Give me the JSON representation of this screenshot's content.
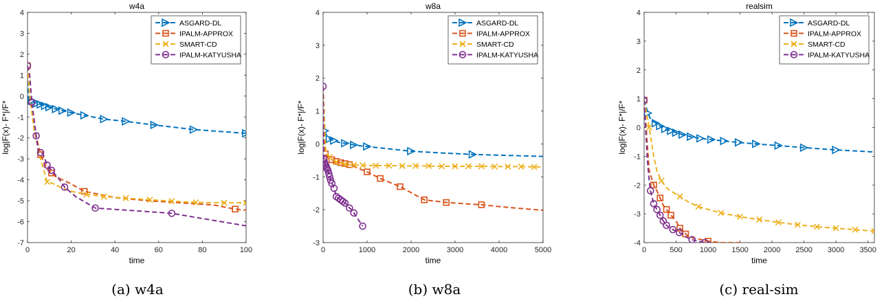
{
  "legend_entries": [
    {
      "name": "ASGARD-DL",
      "color": "#0072BD",
      "marker": "triangle-right"
    },
    {
      "name": "IPALM-APPROX",
      "color": "#D95319",
      "marker": "square"
    },
    {
      "name": "SMART-CD",
      "color": "#EDB120",
      "marker": "x"
    },
    {
      "name": "IPALM-KATYUSHA",
      "color": "#7E2F8E",
      "marker": "circle"
    }
  ],
  "chart_data": [
    {
      "type": "line",
      "title": "w4a",
      "caption": "(a) w4a",
      "xlabel": "time",
      "ylabel": "log|F(x)- F*|/F*",
      "xlim": [
        0,
        100
      ],
      "ylim": [
        -7,
        4
      ],
      "xticks": [
        0,
        20,
        40,
        60,
        80,
        100
      ],
      "yticks": [
        -7,
        -6,
        -5,
        -4,
        -3,
        -2,
        -1,
        0,
        1,
        2,
        3,
        4
      ],
      "grid": false,
      "legend_position": "top-right",
      "series": [
        {
          "name": "ASGARD-DL",
          "x": [
            0,
            0.3,
            1,
            2,
            3,
            4.5,
            6,
            8,
            10,
            13,
            16,
            20,
            26,
            33,
            35,
            45,
            58,
            76,
            100
          ],
          "y": [
            1.45,
            -0.1,
            -0.15,
            -0.22,
            -0.28,
            -0.34,
            -0.4,
            -0.47,
            -0.53,
            -0.62,
            -0.7,
            -0.79,
            -0.92,
            -1.06,
            -1.1,
            -1.21,
            -1.38,
            -1.6,
            -1.78
          ],
          "markers_x": [
            0.3,
            2,
            4.5,
            6,
            8,
            10,
            13,
            16,
            20,
            26,
            35,
            45,
            58,
            76,
            100
          ]
        },
        {
          "name": "IPALM-APPROX",
          "x": [
            0,
            1,
            3,
            6,
            9,
            13,
            20,
            26,
            40,
            55,
            70,
            85,
            95,
            100
          ],
          "y": [
            1.45,
            0,
            -1.5,
            -2.8,
            -3.5,
            -3.85,
            -4.2,
            -4.55,
            -4.85,
            -5,
            -5.1,
            -5.2,
            -5.4,
            -5.45
          ],
          "markers_x": [
            0,
            6,
            11,
            26,
            95
          ]
        },
        {
          "name": "SMART-CD",
          "x": [
            0,
            1,
            3,
            6,
            9,
            11,
            15,
            20,
            27,
            35,
            45,
            56,
            66,
            77,
            90,
            100
          ],
          "y": [
            1.45,
            0,
            -1.6,
            -3,
            -4.1,
            -4.15,
            -4.35,
            -4.55,
            -4.7,
            -4.8,
            -4.88,
            -4.95,
            -5.02,
            -5.08,
            -5.1,
            -5.1
          ],
          "markers_x": [
            9,
            27,
            35,
            45,
            56,
            66,
            77,
            90,
            100
          ]
        },
        {
          "name": "IPALM-KATYUSHA",
          "x": [
            0,
            1,
            2,
            3,
            4,
            5,
            6,
            7,
            9,
            11,
            14,
            17,
            22,
            31,
            45,
            66,
            80,
            100
          ],
          "y": [
            1.45,
            1,
            -0.3,
            -1.1,
            -1.9,
            -2.7,
            -2.7,
            -2.75,
            -3.3,
            -3.55,
            -3.9,
            -4.35,
            -4.8,
            -5.35,
            -5.45,
            -5.6,
            -5.85,
            -6.2
          ],
          "markers_x": [
            0,
            2,
            4,
            6,
            9,
            11,
            17,
            31,
            66
          ]
        }
      ]
    },
    {
      "type": "line",
      "title": "w8a",
      "caption": "(b) w8a",
      "xlabel": "time",
      "ylabel": "log|F(x)- F*|/F*",
      "xlim": [
        0,
        5000
      ],
      "ylim": [
        -3,
        4
      ],
      "xticks": [
        0,
        1000,
        2000,
        3000,
        4000,
        5000
      ],
      "yticks": [
        -3,
        -2,
        -1,
        0,
        1,
        2,
        3,
        4
      ],
      "grid": false,
      "legend_position": "top-right",
      "series": [
        {
          "name": "ASGARD-DL",
          "x": [
            0,
            40,
            80,
            150,
            250,
            350,
            500,
            700,
            1000,
            1500,
            2000,
            2600,
            3400,
            4200,
            5000
          ],
          "y": [
            1.75,
            0.4,
            0.25,
            0.15,
            0.1,
            0.05,
            0.02,
            -0.03,
            -0.08,
            -0.15,
            -0.22,
            -0.27,
            -0.32,
            -0.35,
            -0.38
          ],
          "markers_x": [
            40,
            150,
            250,
            500,
            700,
            1000,
            2000,
            3400
          ]
        },
        {
          "name": "IPALM-APPROX",
          "x": [
            0,
            50,
            100,
            200,
            300,
            400,
            500,
            600,
            1000,
            1300,
            1750,
            2300,
            2800,
            3600,
            4200,
            5000
          ],
          "y": [
            1.75,
            -0.3,
            -0.4,
            -0.48,
            -0.53,
            -0.57,
            -0.6,
            -0.63,
            -0.85,
            -1.05,
            -1.3,
            -1.7,
            -1.78,
            -1.85,
            -1.93,
            -2.02
          ],
          "markers_x": [
            50,
            200,
            300,
            400,
            500,
            600,
            1000,
            1300,
            1750,
            2300,
            2800,
            3600
          ]
        },
        {
          "name": "SMART-CD",
          "x": [
            0,
            60,
            150,
            300,
            500,
            700,
            900,
            1200,
            1500,
            1800,
            2100,
            2400,
            2700,
            3000,
            3300,
            3600,
            3900,
            4200,
            4500,
            4800,
            5000
          ],
          "y": [
            1.75,
            -0.2,
            -0.4,
            -0.55,
            -0.62,
            -0.64,
            -0.65,
            -0.66,
            -0.66,
            -0.67,
            -0.67,
            -0.67,
            -0.68,
            -0.68,
            -0.68,
            -0.68,
            -0.69,
            -0.69,
            -0.69,
            -0.7,
            -0.7
          ],
          "markers_x": [
            150,
            300,
            500,
            700,
            900,
            1200,
            1500,
            1800,
            2100,
            2400,
            2700,
            3000,
            3300,
            3600,
            3900,
            4200,
            4500,
            4800
          ]
        },
        {
          "name": "IPALM-KATYUSHA",
          "x": [
            0,
            15,
            30,
            45,
            60,
            75,
            90,
            110,
            130,
            150,
            170,
            200,
            250,
            300,
            350,
            400,
            450,
            500,
            550,
            600,
            650,
            700,
            900
          ],
          "y": [
            1.75,
            -0.45,
            -0.55,
            -0.6,
            -0.65,
            -0.7,
            -0.75,
            -0.8,
            -0.9,
            -1,
            -1.1,
            -1.2,
            -1.35,
            -1.6,
            -1.65,
            -1.7,
            -1.75,
            -1.8,
            -1.85,
            -1.95,
            -2,
            -2.1,
            -2.5
          ],
          "markers_x": [
            0,
            15,
            30,
            45,
            60,
            75,
            90,
            110,
            130,
            150,
            170,
            200,
            250,
            300,
            350,
            400,
            450,
            500,
            600,
            700,
            900
          ]
        }
      ]
    },
    {
      "type": "line",
      "title": "realsim",
      "caption": "(c) real-sim",
      "xlabel": "time",
      "ylabel": "log|F(x)- F*|/F*",
      "xlim": [
        0,
        3600
      ],
      "ylim": [
        -4,
        4
      ],
      "xticks": [
        0,
        500,
        1000,
        1500,
        2000,
        2500,
        3000,
        3500
      ],
      "yticks": [
        -4,
        -3,
        -2,
        -1,
        0,
        1,
        2,
        3,
        4
      ],
      "grid": false,
      "legend_position": "top-right",
      "series": [
        {
          "name": "ASGARD-DL",
          "x": [
            0,
            60,
            100,
            180,
            250,
            330,
            420,
            500,
            600,
            730,
            880,
            1050,
            1250,
            1480,
            1750,
            2100,
            2500,
            3000,
            3600
          ],
          "y": [
            0.95,
            0.5,
            0.3,
            0.15,
            0.05,
            -0.05,
            -0.12,
            -0.18,
            -0.25,
            -0.32,
            -0.38,
            -0.42,
            -0.47,
            -0.52,
            -0.57,
            -0.63,
            -0.7,
            -0.78,
            -0.85
          ],
          "markers_x": [
            60,
            180,
            250,
            330,
            420,
            500,
            600,
            730,
            880,
            1050,
            1250,
            1480,
            1750,
            2100,
            2500,
            3000
          ]
        },
        {
          "name": "IPALM-APPROX",
          "x": [
            0,
            80,
            150,
            200,
            250,
            300,
            350,
            420,
            500,
            560,
            650,
            700,
            800,
            900,
            1000,
            1200,
            1500
          ],
          "y": [
            0.95,
            -1.5,
            -2,
            -2.2,
            -2.45,
            -2.7,
            -2.85,
            -3.05,
            -3.25,
            -3.5,
            -3.7,
            -3.8,
            -3.85,
            -3.9,
            -3.95,
            -4,
            -4
          ],
          "markers_x": [
            0,
            150,
            250,
            350,
            420,
            560,
            650,
            1000
          ]
        },
        {
          "name": "SMART-CD",
          "x": [
            0,
            80,
            150,
            200,
            270,
            350,
            450,
            560,
            700,
            850,
            1000,
            1200,
            1500,
            1800,
            2100,
            2400,
            2700,
            3000,
            3300,
            3600
          ],
          "y": [
            0.95,
            0,
            -1,
            -1.5,
            -1.85,
            -2.1,
            -2.25,
            -2.4,
            -2.6,
            -2.75,
            -2.85,
            -2.97,
            -3.1,
            -3.2,
            -3.3,
            -3.38,
            -3.45,
            -3.5,
            -3.55,
            -3.6
          ],
          "markers_x": [
            80,
            270,
            560,
            850,
            1200,
            1500,
            1800,
            2100,
            2400,
            2700,
            3000,
            3300,
            3600
          ]
        },
        {
          "name": "IPALM-KATYUSHA",
          "x": [
            0,
            50,
            80,
            100,
            150,
            200,
            250,
            300,
            350,
            450,
            550,
            650,
            750,
            850,
            950,
            1050
          ],
          "y": [
            0.95,
            -1.1,
            -1.85,
            -2.2,
            -2.65,
            -2.85,
            -3.05,
            -3.25,
            -3.4,
            -3.55,
            -3.65,
            -3.8,
            -3.9,
            -3.95,
            -4,
            -4
          ],
          "markers_x": [
            0,
            100,
            150,
            200,
            250,
            300,
            350,
            450,
            550,
            750,
            950
          ]
        }
      ]
    }
  ]
}
